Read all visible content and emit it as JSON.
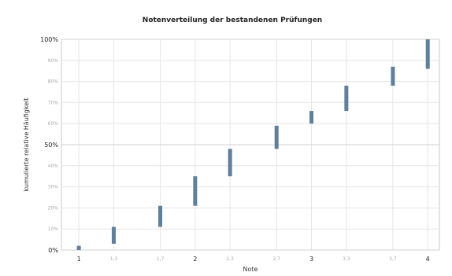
{
  "chart_data": {
    "type": "range-bar",
    "title": "Notenverteilung der bestandenen Prüfungen",
    "xlabel": "Note",
    "ylabel": "kumulierte relative Häufigkeit",
    "xlim": [
      0.85,
      4.1
    ],
    "ylim": [
      0,
      100
    ],
    "x_ticks_major": [
      "1",
      "2",
      "3",
      "4"
    ],
    "x_ticks_minor": [
      "1,3",
      "1,7",
      "2,3",
      "2,7",
      "3,3",
      "3,7"
    ],
    "y_ticks_major": [
      "0%",
      "50%",
      "100%"
    ],
    "y_ticks_minor": [
      "10%",
      "20%",
      "30%",
      "40%",
      "60%",
      "70%",
      "80%",
      "90%"
    ],
    "grid": true,
    "bar_color": "#5f7f9a",
    "ranges": [
      {
        "x": 1.0,
        "low": 0,
        "high": 2
      },
      {
        "x": 1.3,
        "low": 3,
        "high": 11
      },
      {
        "x": 1.7,
        "low": 11,
        "high": 21
      },
      {
        "x": 2.0,
        "low": 21,
        "high": 35
      },
      {
        "x": 2.3,
        "low": 35,
        "high": 48
      },
      {
        "x": 2.7,
        "low": 48,
        "high": 59
      },
      {
        "x": 3.0,
        "low": 60,
        "high": 66
      },
      {
        "x": 3.3,
        "low": 66,
        "high": 78
      },
      {
        "x": 3.7,
        "low": 78,
        "high": 87
      },
      {
        "x": 4.0,
        "low": 86,
        "high": 100
      }
    ]
  }
}
